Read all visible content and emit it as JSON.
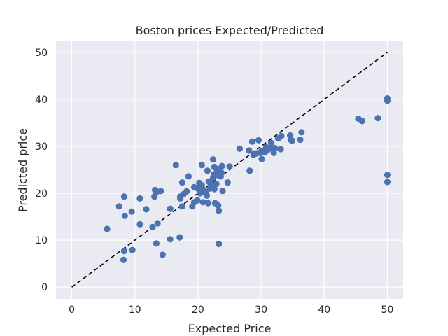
{
  "chart_data": {
    "type": "scatter",
    "title": "Boston prices Expected/Predicted",
    "xlabel": "Expected Price",
    "ylabel": "Predicted price",
    "xlim": [
      -2.5,
      52.5
    ],
    "ylim": [
      -2.5,
      52.5
    ],
    "xticks": [
      0,
      10,
      20,
      30,
      40,
      50
    ],
    "yticks": [
      0,
      10,
      20,
      30,
      40,
      50
    ],
    "grid": true,
    "background_color": "#eaeaf2",
    "point_color": "#4c72b0",
    "reference_line": {
      "style": "dashed",
      "color": "#000000",
      "from": [
        0,
        0
      ],
      "to": [
        50,
        50
      ]
    },
    "points": [
      [
        5.6,
        12.4
      ],
      [
        7.5,
        17.2
      ],
      [
        8.3,
        19.3
      ],
      [
        8.4,
        15.2
      ],
      [
        8.3,
        7.7
      ],
      [
        8.2,
        5.8
      ],
      [
        9.5,
        16.1
      ],
      [
        9.6,
        7.9
      ],
      [
        10.8,
        18.9
      ],
      [
        10.8,
        13.4
      ],
      [
        11.8,
        16.6
      ],
      [
        12.8,
        12.8
      ],
      [
        13.1,
        19.3
      ],
      [
        13.2,
        20.7
      ],
      [
        13.4,
        20.2
      ],
      [
        13.4,
        9.3
      ],
      [
        13.6,
        13.6
      ],
      [
        14.1,
        20.5
      ],
      [
        14.4,
        6.9
      ],
      [
        15.6,
        16.7
      ],
      [
        15.6,
        10.2
      ],
      [
        16.5,
        26.0
      ],
      [
        17.1,
        10.6
      ],
      [
        17.2,
        19.3
      ],
      [
        17.2,
        18.9
      ],
      [
        17.5,
        22.3
      ],
      [
        17.5,
        17.2
      ],
      [
        17.7,
        19.8
      ],
      [
        18.2,
        20.4
      ],
      [
        18.5,
        23.6
      ],
      [
        19.1,
        17.2
      ],
      [
        19.4,
        18.1
      ],
      [
        19.4,
        21.3
      ],
      [
        19.9,
        18.5
      ],
      [
        20.0,
        21.0
      ],
      [
        20.2,
        22.2
      ],
      [
        20.3,
        20.0
      ],
      [
        20.6,
        21.7
      ],
      [
        20.6,
        26.0
      ],
      [
        20.8,
        18.1
      ],
      [
        20.9,
        20.7
      ],
      [
        21.2,
        20.1
      ],
      [
        21.4,
        19.5
      ],
      [
        21.6,
        17.9
      ],
      [
        21.5,
        24.8
      ],
      [
        21.7,
        22.5
      ],
      [
        21.9,
        21.0
      ],
      [
        22.0,
        22.0
      ],
      [
        22.4,
        23.3
      ],
      [
        22.4,
        27.2
      ],
      [
        22.5,
        24.0
      ],
      [
        22.6,
        20.9
      ],
      [
        22.6,
        25.6
      ],
      [
        22.7,
        17.9
      ],
      [
        22.9,
        23.9
      ],
      [
        22.9,
        22.0
      ],
      [
        23.0,
        24.7
      ],
      [
        23.1,
        25.1
      ],
      [
        23.2,
        17.4
      ],
      [
        23.3,
        16.3
      ],
      [
        23.3,
        9.2
      ],
      [
        23.6,
        23.6
      ],
      [
        23.7,
        24.4
      ],
      [
        23.8,
        25.8
      ],
      [
        23.9,
        20.5
      ],
      [
        24.7,
        22.3
      ],
      [
        25.0,
        25.7
      ],
      [
        26.6,
        29.5
      ],
      [
        28.1,
        29.1
      ],
      [
        28.2,
        24.8
      ],
      [
        28.6,
        31.0
      ],
      [
        28.8,
        28.2
      ],
      [
        29.3,
        28.5
      ],
      [
        29.6,
        31.3
      ],
      [
        29.8,
        28.6
      ],
      [
        30.1,
        29.0
      ],
      [
        30.1,
        27.3
      ],
      [
        30.6,
        28.7
      ],
      [
        30.8,
        29.8
      ],
      [
        31.0,
        29.2
      ],
      [
        31.3,
        29.5
      ],
      [
        31.6,
        30.7
      ],
      [
        32.0,
        28.6
      ],
      [
        32.2,
        29.6
      ],
      [
        32.7,
        31.7
      ],
      [
        33.1,
        29.4
      ],
      [
        33.2,
        32.2
      ],
      [
        34.6,
        32.3
      ],
      [
        34.7,
        31.4
      ],
      [
        34.9,
        31.2
      ],
      [
        36.2,
        31.4
      ],
      [
        36.4,
        33.0
      ],
      [
        45.4,
        35.9
      ],
      [
        46.0,
        35.4
      ],
      [
        48.5,
        36.0
      ],
      [
        50.0,
        40.2
      ],
      [
        50.0,
        39.7
      ],
      [
        50.0,
        23.9
      ],
      [
        50.0,
        22.4
      ]
    ]
  }
}
